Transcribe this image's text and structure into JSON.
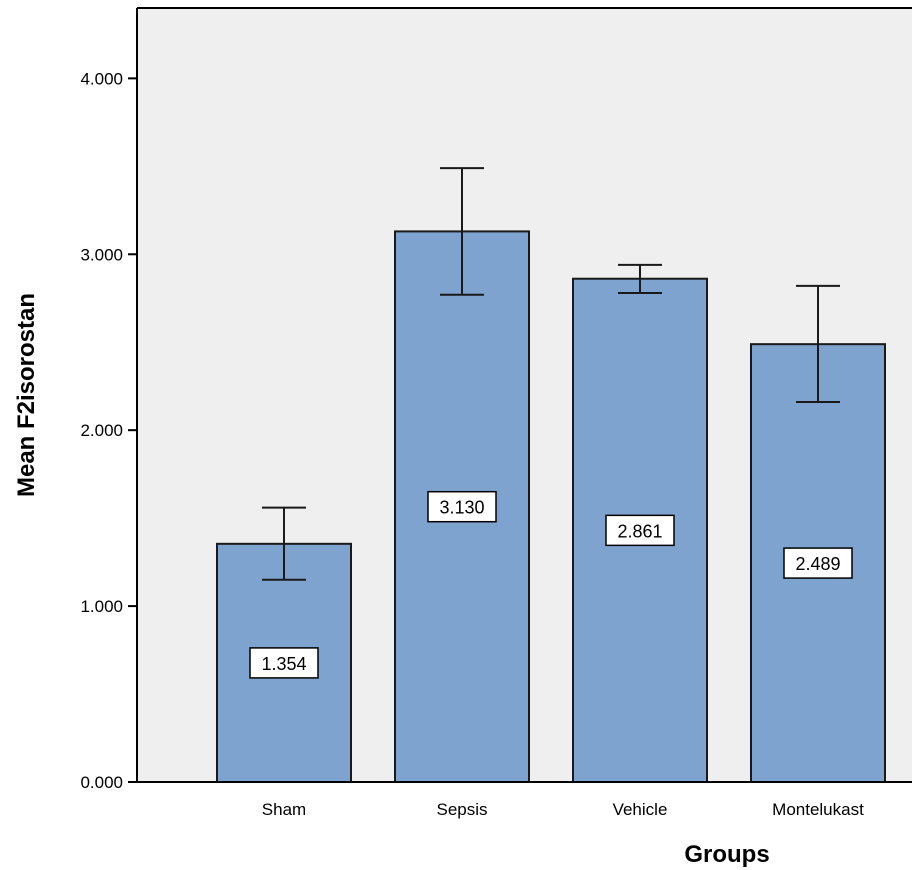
{
  "chart_data": {
    "type": "bar",
    "title": "",
    "xlabel": "Groups",
    "ylabel": "Mean F2isorostan",
    "categories": [
      "Sham",
      "Sepsis",
      "Vehicle",
      "Montelukast"
    ],
    "values": [
      1.354,
      3.13,
      2.861,
      2.489
    ],
    "data_labels": [
      "1.354",
      "3.130",
      "2.861",
      "2.489"
    ],
    "error_bars": {
      "lower": [
        1.15,
        2.77,
        2.78,
        2.16
      ],
      "upper": [
        1.56,
        3.49,
        2.94,
        2.82
      ]
    },
    "ylim": [
      0,
      4.4
    ],
    "yticks": [
      0,
      1,
      2,
      3,
      4
    ],
    "ytick_labels": [
      "0.000",
      "1.000",
      "2.000",
      "3.000",
      "4.000"
    ],
    "grid": false,
    "legend": "none",
    "colors": {
      "bar_fill": "#7fa3cf",
      "bar_stroke": "#1a1a1a",
      "plot_background": "#efefef",
      "error_bar": "#1a1a1a"
    }
  }
}
